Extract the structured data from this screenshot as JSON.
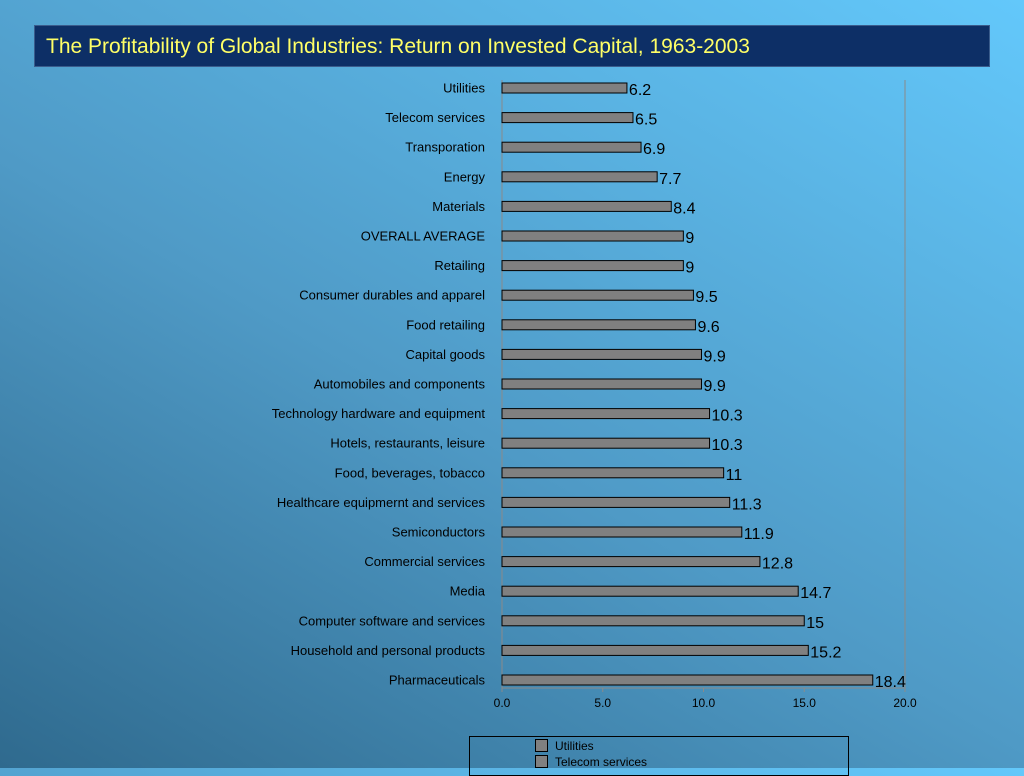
{
  "title": "The Profitability of Global Industries: Return on Invested Capital, 1963-2003",
  "colors": {
    "bar_fill": "#808080",
    "bar_stroke": "#000000",
    "title_text": "#ffff66",
    "title_bg": "#0d2f66"
  },
  "chart_data": {
    "type": "bar",
    "orientation": "horizontal",
    "categories": [
      "Utilities",
      "Telecom services",
      "Transporation",
      "Energy",
      "Materials",
      "OVERALL AVERAGE",
      "Retailing",
      "Consumer durables and apparel",
      "Food retailing",
      "Capital goods",
      "Automobiles and components",
      "Technology hardware and equipment",
      "Hotels, restaurants, leisure",
      "Food, beverages, tobacco",
      "Healthcare equipmernt and services",
      "Semiconductors",
      "Commercial services",
      "Media",
      "Computer software and services",
      "Household and personal products",
      "Pharmaceuticals"
    ],
    "values": [
      6.2,
      6.5,
      6.9,
      7.7,
      8.4,
      9,
      9,
      9.5,
      9.6,
      9.9,
      9.9,
      10.3,
      10.3,
      11,
      11.3,
      11.9,
      12.8,
      14.7,
      15,
      15.2,
      18.4
    ],
    "value_labels": [
      "6.2",
      "6.5",
      "6.9",
      "7.7",
      "8.4",
      "9",
      "9",
      "9.5",
      "9.6",
      "9.9",
      "9.9",
      "10.3",
      "10.3",
      "11",
      "11.3",
      "11.9",
      "12.8",
      "14.7",
      "15",
      "15.2",
      "18.4"
    ],
    "xlim": [
      0,
      20
    ],
    "x_ticks": [
      0,
      5,
      10,
      15,
      20
    ],
    "x_tick_labels": [
      "0.0",
      "5.0",
      "10.0",
      "15.0",
      "20.0"
    ],
    "grid": false,
    "legend_placement": "bottom",
    "legend": [
      "Utilities",
      "Telecom services"
    ]
  }
}
